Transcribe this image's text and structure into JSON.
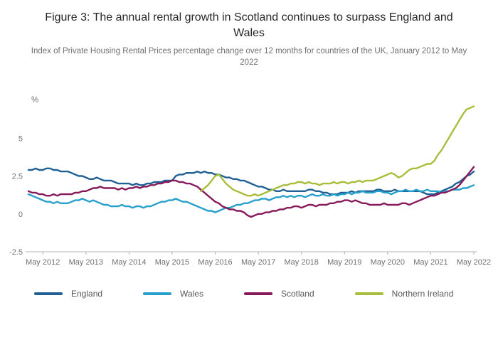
{
  "chart_data": {
    "type": "line",
    "title": "Figure 3: The annual rental growth in Scotland continues to surpass England and Wales",
    "subtitle": "Index of Private Housing Rental Prices percentage change over 12 months for countries of the UK, January 2012 to May 2022",
    "unit_label": "%",
    "x_start": "January 2012",
    "x_end": "May 2022",
    "x_tick_labels": [
      "May 2012",
      "May 2013",
      "May 2014",
      "May 2015",
      "May 2016",
      "May 2017",
      "May 2018",
      "May 2019",
      "May 2020",
      "May 2021",
      "May 2022"
    ],
    "x_tick_month_indices": [
      4,
      16,
      28,
      40,
      52,
      64,
      76,
      88,
      100,
      112,
      124
    ],
    "y_ticks": [
      -2.5,
      0,
      2.5,
      5
    ],
    "ylim": [
      -2.5,
      7.5
    ],
    "grid": "off",
    "legend_position": "bottom",
    "axis_color": "#b3b3b3",
    "tick_label_color": "#707070",
    "series": [
      {
        "name": "England",
        "color": "#206095",
        "values": [
          2.9,
          2.9,
          3.0,
          2.9,
          2.9,
          3.0,
          3.0,
          2.9,
          2.9,
          2.8,
          2.8,
          2.8,
          2.7,
          2.6,
          2.5,
          2.5,
          2.4,
          2.3,
          2.3,
          2.4,
          2.3,
          2.2,
          2.2,
          2.2,
          2.1,
          2.0,
          2.0,
          2.0,
          2.0,
          1.9,
          2.0,
          1.9,
          1.9,
          2.0,
          2.0,
          2.1,
          2.1,
          2.1,
          2.2,
          2.2,
          2.2,
          2.5,
          2.6,
          2.6,
          2.7,
          2.7,
          2.7,
          2.8,
          2.7,
          2.8,
          2.7,
          2.7,
          2.6,
          2.6,
          2.5,
          2.4,
          2.4,
          2.3,
          2.3,
          2.2,
          2.2,
          2.1,
          2.0,
          1.9,
          1.8,
          1.8,
          1.7,
          1.6,
          1.6,
          1.5,
          1.5,
          1.6,
          1.5,
          1.5,
          1.5,
          1.5,
          1.5,
          1.5,
          1.6,
          1.6,
          1.5,
          1.5,
          1.4,
          1.4,
          1.3,
          1.3,
          1.3,
          1.4,
          1.4,
          1.4,
          1.5,
          1.4,
          1.5,
          1.5,
          1.5,
          1.5,
          1.5,
          1.6,
          1.6,
          1.5,
          1.5,
          1.5,
          1.6,
          1.5,
          1.5,
          1.5,
          1.5,
          1.5,
          1.5,
          1.5,
          1.4,
          1.3,
          1.3,
          1.3,
          1.4,
          1.5,
          1.6,
          1.7,
          1.8,
          2.0,
          2.1,
          2.3,
          2.5,
          2.6,
          2.8
        ]
      },
      {
        "name": "Wales",
        "color": "#27a0cc",
        "values": [
          1.3,
          1.2,
          1.1,
          1.0,
          0.9,
          0.8,
          0.8,
          0.7,
          0.8,
          0.7,
          0.7,
          0.7,
          0.8,
          0.9,
          0.9,
          1.0,
          0.9,
          0.8,
          0.9,
          0.8,
          0.7,
          0.6,
          0.6,
          0.5,
          0.5,
          0.5,
          0.6,
          0.5,
          0.5,
          0.4,
          0.5,
          0.5,
          0.4,
          0.5,
          0.5,
          0.6,
          0.7,
          0.8,
          0.8,
          0.9,
          0.9,
          1.0,
          0.9,
          0.8,
          0.8,
          0.7,
          0.6,
          0.5,
          0.4,
          0.3,
          0.2,
          0.2,
          0.1,
          0.2,
          0.3,
          0.4,
          0.4,
          0.5,
          0.6,
          0.6,
          0.7,
          0.7,
          0.8,
          0.9,
          0.9,
          1.0,
          1.0,
          0.9,
          1.0,
          1.1,
          1.1,
          1.2,
          1.1,
          1.2,
          1.1,
          1.2,
          1.2,
          1.1,
          1.2,
          1.3,
          1.2,
          1.2,
          1.3,
          1.2,
          1.2,
          1.3,
          1.2,
          1.3,
          1.3,
          1.4,
          1.3,
          1.4,
          1.4,
          1.5,
          1.4,
          1.4,
          1.4,
          1.5,
          1.5,
          1.4,
          1.4,
          1.3,
          1.4,
          1.5,
          1.5,
          1.6,
          1.5,
          1.5,
          1.6,
          1.5,
          1.5,
          1.6,
          1.5,
          1.5,
          1.5,
          1.4,
          1.5,
          1.5,
          1.6,
          1.6,
          1.6,
          1.7,
          1.7,
          1.8,
          1.9
        ]
      },
      {
        "name": "Scotland",
        "color": "#871a5b",
        "values": [
          1.5,
          1.4,
          1.4,
          1.3,
          1.3,
          1.2,
          1.2,
          1.3,
          1.2,
          1.3,
          1.3,
          1.3,
          1.3,
          1.4,
          1.4,
          1.5,
          1.5,
          1.6,
          1.7,
          1.7,
          1.8,
          1.7,
          1.7,
          1.7,
          1.7,
          1.6,
          1.7,
          1.6,
          1.7,
          1.7,
          1.8,
          1.7,
          1.8,
          1.8,
          1.9,
          1.9,
          2.0,
          2.0,
          2.1,
          2.1,
          2.2,
          2.2,
          2.1,
          2.1,
          2.0,
          2.0,
          1.9,
          1.8,
          1.6,
          1.4,
          1.2,
          1.0,
          0.8,
          0.7,
          0.5,
          0.4,
          0.3,
          0.3,
          0.2,
          0.2,
          0.1,
          -0.1,
          -0.2,
          -0.1,
          0.0,
          0.0,
          0.1,
          0.1,
          0.2,
          0.2,
          0.3,
          0.3,
          0.4,
          0.4,
          0.5,
          0.5,
          0.4,
          0.5,
          0.6,
          0.6,
          0.5,
          0.6,
          0.6,
          0.6,
          0.7,
          0.7,
          0.8,
          0.8,
          0.9,
          0.9,
          0.8,
          0.9,
          0.8,
          0.7,
          0.7,
          0.6,
          0.6,
          0.6,
          0.6,
          0.7,
          0.6,
          0.6,
          0.6,
          0.6,
          0.7,
          0.7,
          0.6,
          0.7,
          0.8,
          0.9,
          1.0,
          1.1,
          1.2,
          1.2,
          1.3,
          1.4,
          1.4,
          1.5,
          1.6,
          1.7,
          1.9,
          2.2,
          2.5,
          2.8,
          3.1
        ]
      },
      {
        "name": "Northern Ireland",
        "color": "#a8bd3a",
        "values": [
          null,
          null,
          null,
          null,
          null,
          null,
          null,
          null,
          null,
          null,
          null,
          null,
          null,
          null,
          null,
          null,
          null,
          null,
          null,
          null,
          null,
          null,
          null,
          null,
          null,
          null,
          null,
          null,
          null,
          null,
          null,
          null,
          null,
          null,
          null,
          null,
          null,
          null,
          null,
          null,
          null,
          null,
          null,
          null,
          null,
          null,
          null,
          null,
          1.5,
          1.7,
          1.9,
          2.2,
          2.5,
          2.6,
          2.3,
          2.0,
          1.8,
          1.6,
          1.5,
          1.4,
          1.3,
          1.2,
          1.2,
          1.3,
          1.2,
          1.3,
          1.4,
          1.5,
          1.6,
          1.7,
          1.8,
          1.9,
          1.9,
          2.0,
          2.0,
          2.1,
          2.1,
          2.0,
          2.1,
          2.0,
          2.0,
          1.9,
          2.0,
          2.0,
          2.0,
          2.1,
          2.0,
          2.1,
          2.1,
          2.0,
          2.1,
          2.1,
          2.2,
          2.1,
          2.2,
          2.2,
          2.2,
          2.3,
          2.4,
          2.5,
          2.6,
          2.7,
          2.6,
          2.4,
          2.5,
          2.7,
          2.9,
          3.0,
          3.0,
          3.1,
          3.2,
          3.3,
          3.3,
          3.5,
          3.9,
          4.2,
          4.6,
          5.0,
          5.4,
          5.8,
          6.2,
          6.6,
          6.9,
          7.0,
          7.1
        ]
      }
    ]
  }
}
